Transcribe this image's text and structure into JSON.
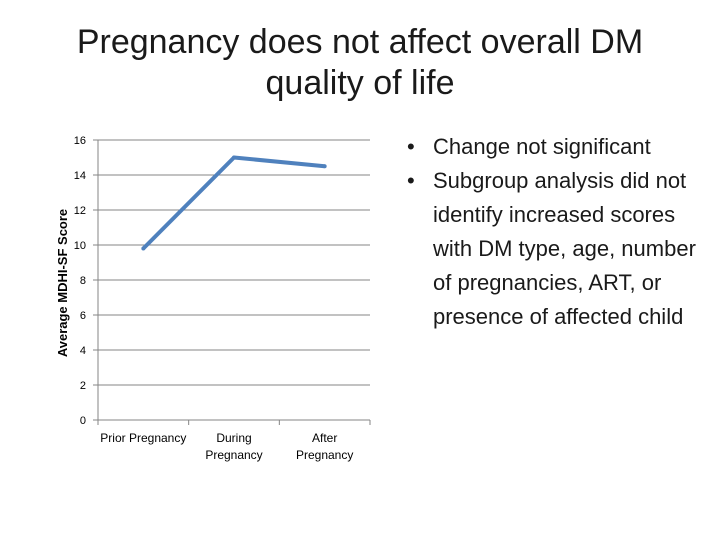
{
  "slide": {
    "title_lines": [
      "Pregnancy does not affect overall DM",
      "quality of life"
    ],
    "bullets": [
      "Change not significant",
      "Subgroup analysis did not identify increased scores with DM type, age, number of pregnancies, ART, or presence of affected child"
    ]
  },
  "chart_data": {
    "type": "line",
    "categories": [
      [
        "Prior Pregnancy"
      ],
      [
        "During",
        "Pregnancy"
      ],
      [
        "After",
        "Pregnancy"
      ]
    ],
    "series": [
      {
        "values": [
          9.8,
          15.0,
          14.5
        ],
        "color": "#4f81bd"
      }
    ],
    "ylabel": "Average MDHI-SF Score",
    "ylim": [
      0,
      16
    ],
    "yticks": [
      0,
      2,
      4,
      6,
      8,
      10,
      12,
      14,
      16
    ],
    "grid": true
  }
}
